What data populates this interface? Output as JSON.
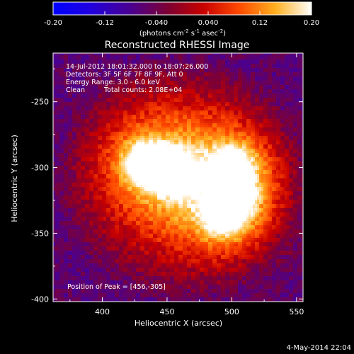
{
  "chart_data": {
    "type": "heatmap",
    "title": "Reconstructed RHESSI Image",
    "xlabel": "Heliocentric X (arcsec)",
    "ylabel": "Heliocentric Y (arcsec)",
    "xlim": [
      362,
      555
    ],
    "ylim": [
      -402,
      -213
    ],
    "x_ticks": [
      400,
      450,
      500,
      550
    ],
    "y_ticks": [
      -250,
      -300,
      -350,
      -400
    ],
    "colorbar": {
      "range": [
        -0.2,
        0.2
      ],
      "ticks": [
        "-0.20",
        "-0.12",
        "-0.040",
        "0.040",
        "0.12",
        "0.20"
      ],
      "tick_values": [
        -0.2,
        -0.12,
        -0.04,
        0.04,
        0.12,
        0.2
      ],
      "units_main": "(photons cm",
      "units_sup1": "-2",
      "units_mid": " s",
      "units_sup2": "-1",
      "units_end": " asec",
      "units_sup3": "-2",
      "units_close": ")"
    },
    "annotations": {
      "time": "14-Jul-2012 18:01:32.000 to 18:07:26.000",
      "detectors": "Detectors: 3F 5F 6F 7F 8F 9F, Att 0",
      "energy": "Energy Range: 3.0 - 6.0 keV",
      "clean": "Clean",
      "counts": "Total counts: 2.08E+04",
      "peak": "Position of Peak = [456,-305]"
    },
    "peak_position": [
      456,
      -305
    ],
    "sources": [
      {
        "x": 452,
        "y": -303,
        "amplitude": 0.19
      },
      {
        "x": 432,
        "y": -296,
        "amplitude": 0.17
      },
      {
        "x": 494,
        "y": -337,
        "amplitude": 0.16
      },
      {
        "x": 502,
        "y": -298,
        "amplitude": 0.13
      },
      {
        "x": 505,
        "y": -322,
        "amplitude": 0.11
      }
    ],
    "background_level": 0.04
  },
  "footer": {
    "date": "4-May-2014 22:04"
  }
}
